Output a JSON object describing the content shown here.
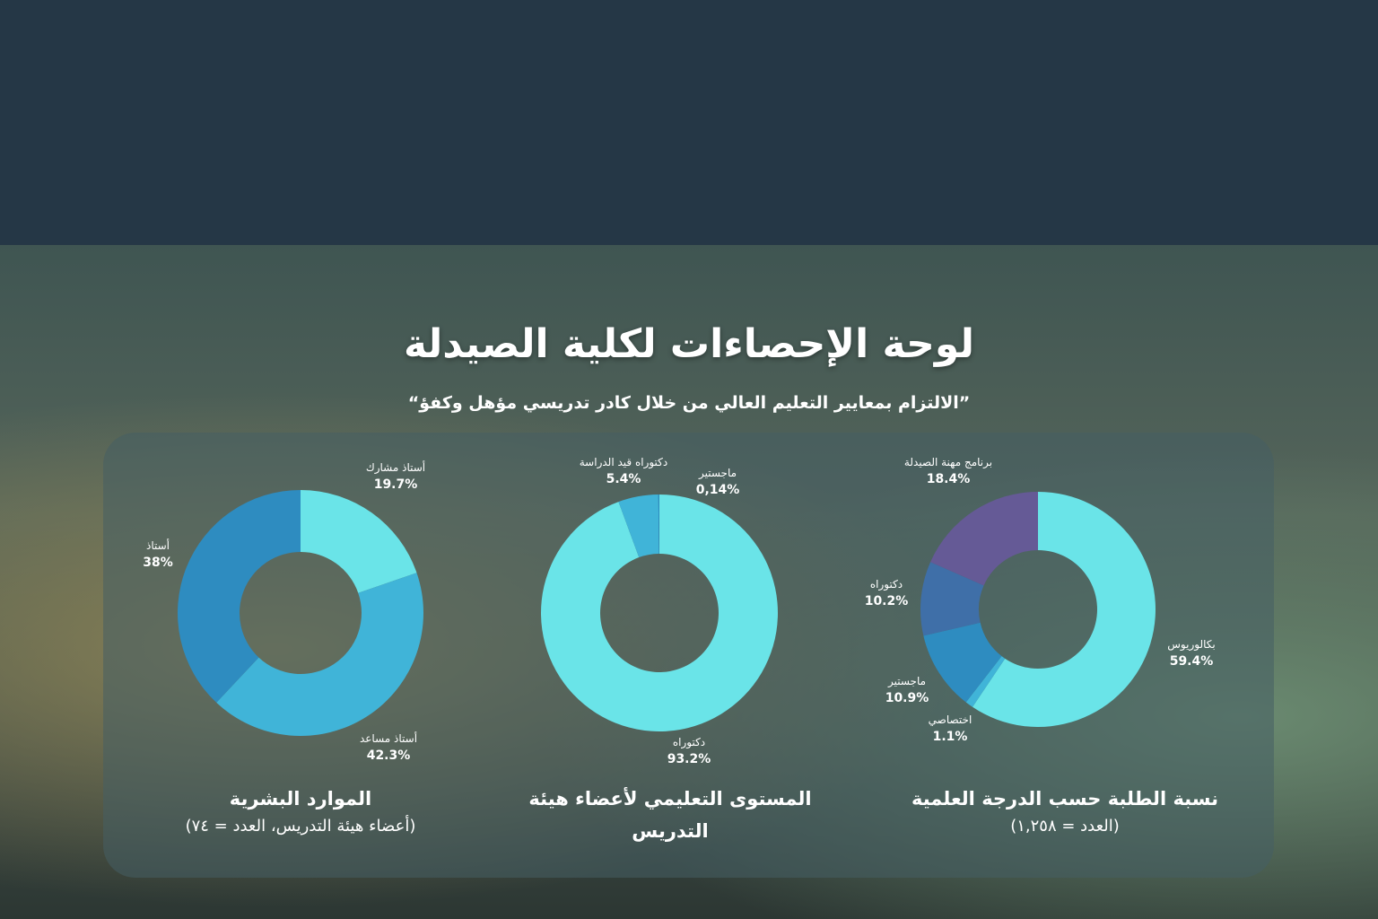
{
  "title": "لوحة الإحصاءات لكلية الصيدلة",
  "subtitle": "”الالتزام بمعايير التعليم العالي من خلال كادر تدريسي مؤهل وكفؤ“",
  "chart_data": [
    {
      "type": "pie",
      "title": "الموارد البشرية",
      "subtitle": "(أعضاء هيئة التدريس، العدد = ٧٤)",
      "categories": [
        "أستاذ مشارك",
        "أستاذ مساعد",
        "أستاذ"
      ],
      "values": [
        19.7,
        42.3,
        38
      ],
      "value_labels": [
        "19.7%",
        "42.3%",
        "38%"
      ],
      "colors": [
        "#6ae4e8",
        "#40b4d8",
        "#2e8cc0"
      ]
    },
    {
      "type": "pie",
      "title": "المستوى التعليمي لأعضاء هيئة التدريس",
      "categories": [
        "دكتوراه",
        "دكتوراه قيد الدراسة",
        "ماجستير"
      ],
      "values": [
        93.2,
        5.4,
        0.14
      ],
      "value_labels": [
        "93.2%",
        "5.4%",
        "0,14%"
      ],
      "colors": [
        "#6ae4e8",
        "#40b4d8",
        "#2e8cc0"
      ]
    },
    {
      "type": "pie",
      "title": "نسبة الطلبة حسب الدرجة العلمية",
      "subtitle": "(العدد = ١,٢٥٨)",
      "categories": [
        "بكالوريوس",
        "اختصاصي",
        "ماجستير",
        "دكتوراه",
        "برنامج مهنة الصيدلة"
      ],
      "values": [
        59.4,
        1.1,
        10.9,
        10.2,
        18.4
      ],
      "value_labels": [
        "59.4%",
        "1.1%",
        "10.9%",
        "10.2%",
        "18.4%"
      ],
      "colors": [
        "#6ae4e8",
        "#40b4d8",
        "#2e8cc0",
        "#3f6fa8",
        "#655a96"
      ]
    }
  ]
}
